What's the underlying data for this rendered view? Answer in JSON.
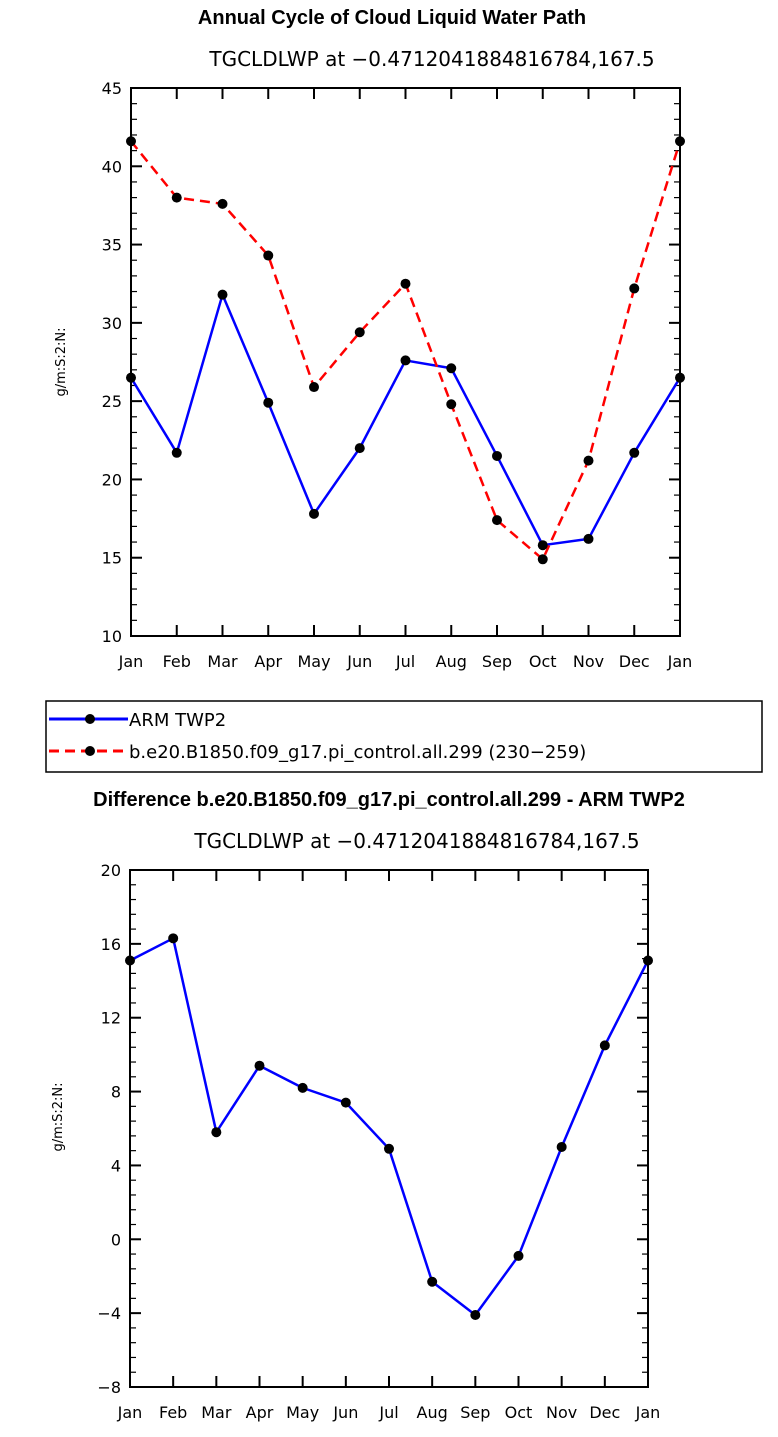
{
  "chart_data": [
    {
      "type": "line",
      "title": "Annual Cycle of Cloud Liquid Water Path",
      "subtitle": "TGCLDLWP at −0.4712041884816784,167.5",
      "ylabel": "g/m:S:2:N:",
      "xlabel": "",
      "categories": [
        "Jan",
        "Feb",
        "Mar",
        "Apr",
        "May",
        "Jun",
        "Jul",
        "Aug",
        "Sep",
        "Oct",
        "Nov",
        "Dec",
        "Jan"
      ],
      "ylim": [
        10,
        45
      ],
      "yticks": [
        10,
        15,
        20,
        25,
        30,
        35,
        40,
        45
      ],
      "grid": false,
      "series": [
        {
          "name": "ARM TWP2",
          "color": "#0000ff",
          "dash": "solid",
          "values": [
            26.5,
            21.7,
            31.8,
            24.9,
            17.8,
            22.0,
            27.6,
            27.1,
            21.5,
            15.8,
            16.2,
            21.7,
            26.5
          ]
        },
        {
          "name": "b.e20.B1850.f09_g17.pi_control.all.299 (230−259)",
          "color": "#ff0000",
          "dash": "dashed",
          "values": [
            41.6,
            38.0,
            37.6,
            34.3,
            25.9,
            29.4,
            32.5,
            24.8,
            17.4,
            14.9,
            21.2,
            32.2,
            41.6
          ]
        }
      ]
    },
    {
      "type": "line",
      "title": "Difference b.e20.B1850.f09_g17.pi_control.all.299 - ARM TWP2",
      "subtitle": "TGCLDLWP at −0.4712041884816784,167.5",
      "ylabel": "g/m:S:2:N:",
      "xlabel": "",
      "categories": [
        "Jan",
        "Feb",
        "Mar",
        "Apr",
        "May",
        "Jun",
        "Jul",
        "Aug",
        "Sep",
        "Oct",
        "Nov",
        "Dec",
        "Jan"
      ],
      "ylim": [
        -8,
        20
      ],
      "yticks": [
        -8,
        -4,
        0,
        4,
        8,
        12,
        16,
        20
      ],
      "grid": false,
      "series": [
        {
          "name": "Difference",
          "color": "#0000ff",
          "dash": "solid",
          "values": [
            15.1,
            16.3,
            5.8,
            9.4,
            8.2,
            7.4,
            4.9,
            -2.3,
            -4.1,
            -0.9,
            5.0,
            10.5,
            15.1
          ]
        }
      ]
    }
  ]
}
